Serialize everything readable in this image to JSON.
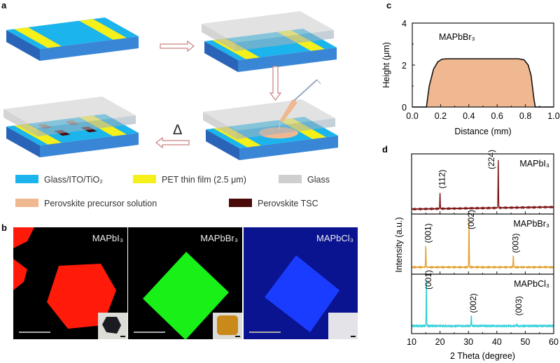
{
  "panel_labels": {
    "a": "a",
    "b": "b",
    "c": "c",
    "d": "d"
  },
  "panel_a": {
    "heat_symbol": "Δ",
    "legend": [
      {
        "label": "Glass/ITO/TiO₂",
        "color": "#1bb4ec"
      },
      {
        "label": "PET thin film (2.5 μm)",
        "color": "#f5f01a"
      },
      {
        "label": "Glass",
        "color": "#cfcfcf"
      },
      {
        "label": "Perovskite precursor solution",
        "color": "#f0b890"
      },
      {
        "label": "Perovskite TSC",
        "color": "#4a0a0a"
      }
    ]
  },
  "panel_b": {
    "images": [
      {
        "label": "MAPbI₃",
        "background": "#000000",
        "crystal_color": "#ff1a0a",
        "inset_crystal_color": "#1a1c22"
      },
      {
        "label": "MAPbBr₃",
        "background": "#000000",
        "crystal_color": "#18f018",
        "inset_crystal_color": "#c98a1a"
      },
      {
        "label": "MAPbCl₃",
        "background": "#0a1490",
        "crystal_color": "#1a3cff",
        "inset_crystal_color": "#e8e8ea"
      }
    ]
  },
  "chart_data": [
    {
      "type": "area",
      "panel": "c",
      "annotation": "MAPbBr₃",
      "xlabel": "Distance (mm)",
      "ylabel": "Height (μm)",
      "xlim": [
        0,
        1.0
      ],
      "ylim": [
        0,
        4
      ],
      "xticks": [
        "0.0",
        "0.2",
        "0.4",
        "0.6",
        "0.8",
        "1.0"
      ],
      "yticks": [
        "0",
        "2",
        "4"
      ],
      "fill_color": "#f0b890",
      "grid": false,
      "x": [
        0,
        0.1,
        0.12,
        0.15,
        0.18,
        0.21,
        0.25,
        0.5,
        0.75,
        0.79,
        0.82,
        0.84,
        0.86,
        0.87,
        1.0
      ],
      "y": [
        0,
        0,
        1.0,
        1.8,
        2.15,
        2.28,
        2.3,
        2.3,
        2.3,
        2.25,
        2.0,
        1.5,
        0.4,
        0,
        0
      ]
    },
    {
      "type": "line",
      "panel": "d",
      "xlabel": "2 Theta (degree)",
      "ylabel": "Intensity (a.u.)",
      "xlim": [
        10,
        60
      ],
      "xticks": [
        "10",
        "20",
        "30",
        "40",
        "50",
        "60"
      ],
      "grid": false,
      "series": [
        {
          "name": "MAPbI₃",
          "color": "#7a1010",
          "peaks": [
            {
              "x": 20.0,
              "intensity": 0.33,
              "label": "(112)"
            },
            {
              "x": 40.5,
              "intensity": 1.0,
              "label": "(224)"
            }
          ]
        },
        {
          "name": "MAPbBr₃",
          "color": "#e0a030",
          "peaks": [
            {
              "x": 15.0,
              "intensity": 0.45,
              "label": "(001)"
            },
            {
              "x": 30.2,
              "intensity": 1.0,
              "label": "(002)"
            },
            {
              "x": 45.8,
              "intensity": 0.24,
              "label": "(003)"
            }
          ]
        },
        {
          "name": "MAPbCl₃",
          "color": "#30d0d8",
          "peaks": [
            {
              "x": 15.2,
              "intensity": 1.0,
              "label": "(001)"
            },
            {
              "x": 31.0,
              "intensity": 0.22,
              "label": "(002)"
            },
            {
              "x": 47.0,
              "intensity": 0.04,
              "label": "(003)"
            }
          ]
        }
      ]
    }
  ]
}
